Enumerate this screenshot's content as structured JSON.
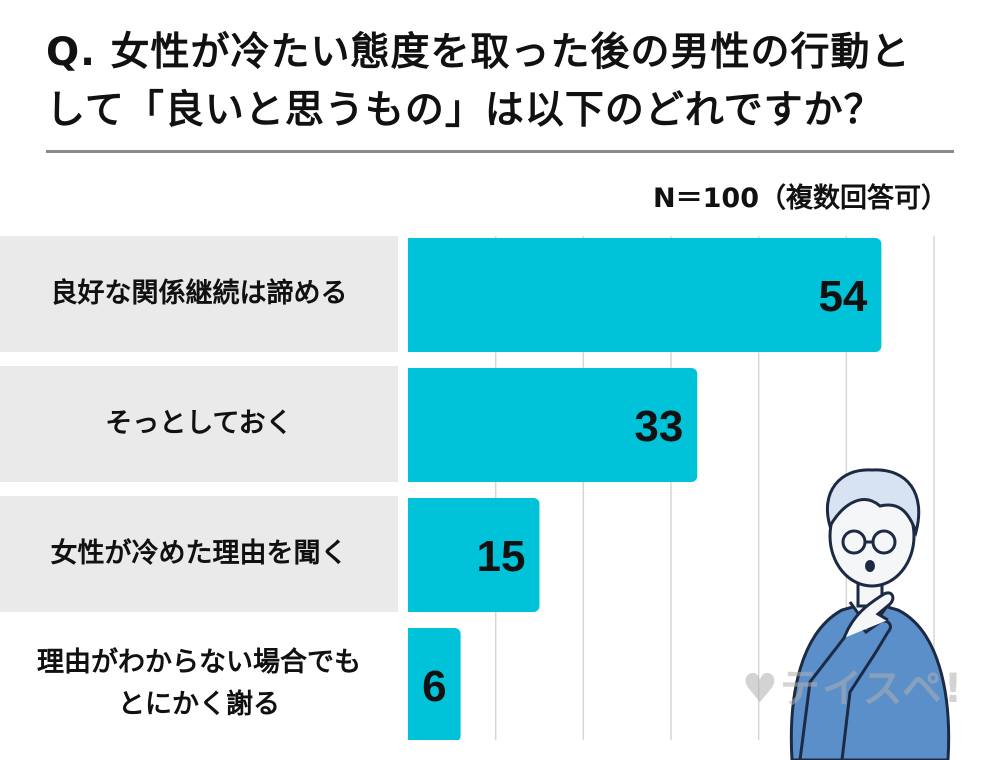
{
  "question": {
    "line1": "Q. 女性が冷たい態度を取った後の男性の行動と",
    "line2": "して「良いと思うもの」は以下のどれですか？"
  },
  "sample_note": "N＝100（複数回答可）",
  "watermark": "テイスペ!",
  "colors": {
    "bar": "#00c3d9",
    "label_bg": "#eaeaea",
    "grid": "#d6d6d6"
  },
  "icons": [
    "thinking-man-illustration",
    "heart-logo-icon"
  ],
  "chart_data": {
    "type": "bar",
    "orientation": "horizontal",
    "categories": [
      "良好な関係継続は諦める",
      "そっとしておく",
      "女性が冷めた理由を聞く",
      "理由がわからない場合でもとにかく謝る"
    ],
    "category_lines": [
      [
        "良好な関係継続は諦める"
      ],
      [
        "そっとしておく"
      ],
      [
        "女性が冷めた理由を聞く"
      ],
      [
        "理由がわからない場合でも",
        "とにかく謝る"
      ]
    ],
    "values": [
      54,
      33,
      15,
      6
    ],
    "xlim": [
      0,
      60
    ],
    "grid": true,
    "data_labels": true
  }
}
